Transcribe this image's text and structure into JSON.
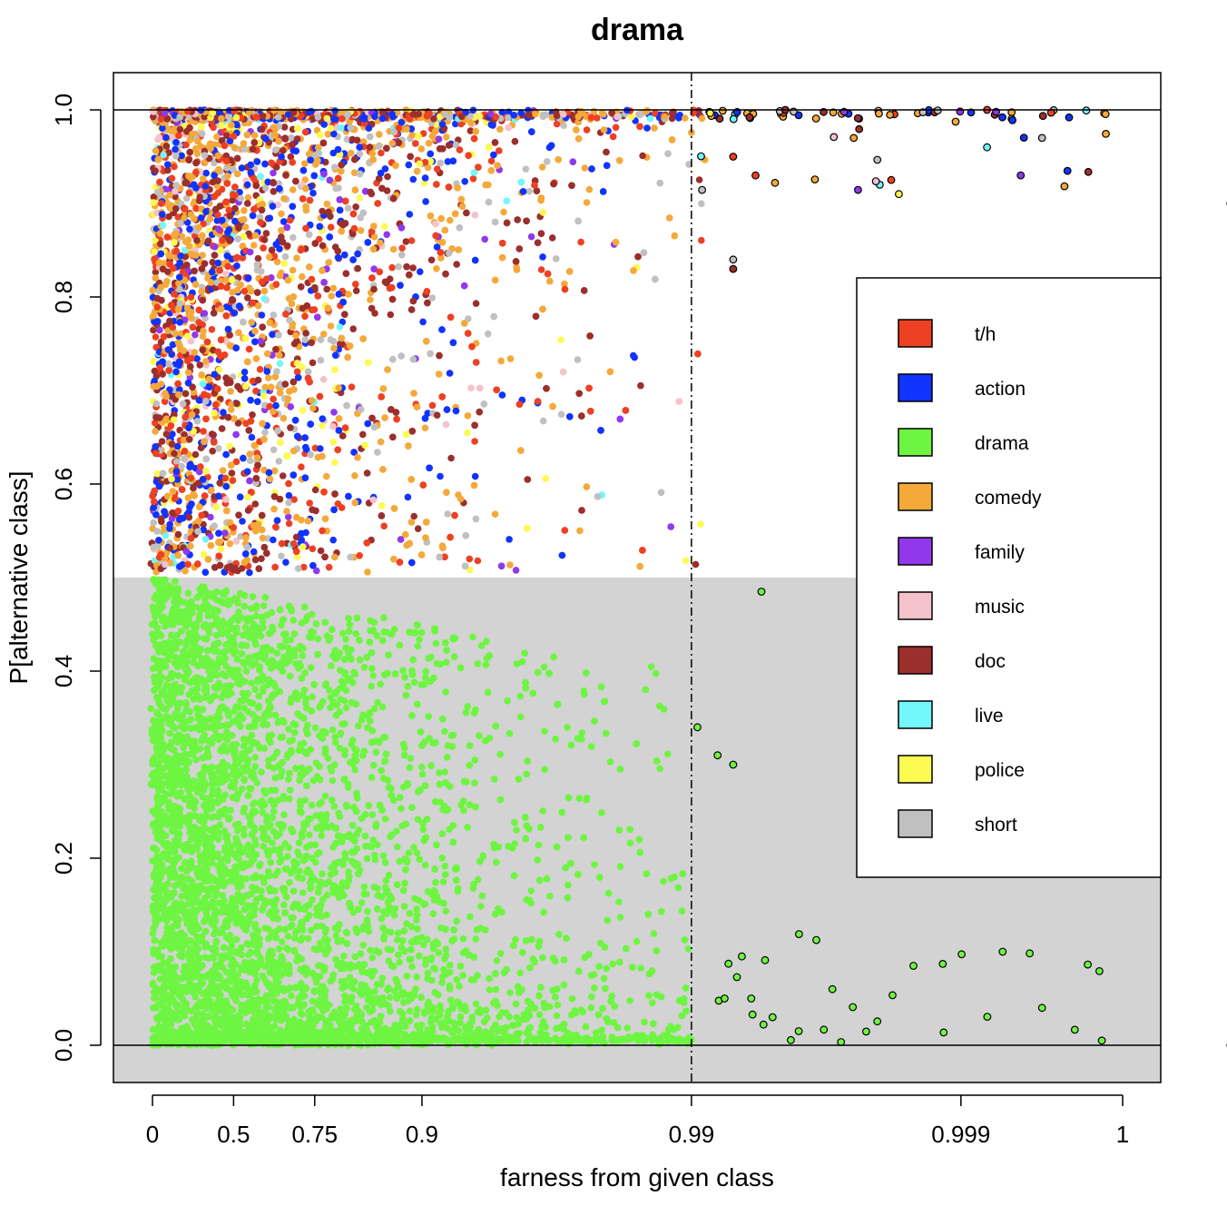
{
  "chart_data": {
    "type": "scatter",
    "title": "drama",
    "xlabel": "farness from given class",
    "ylabel": "P[alternative class]",
    "x_scale": "transformed: axis position = -log10(1 - farness)",
    "x_ticks": [
      {
        "value": 0,
        "label": "0"
      },
      {
        "value": 0.5,
        "label": "0.5"
      },
      {
        "value": 0.75,
        "label": "0.75"
      },
      {
        "value": 0.9,
        "label": "0.9"
      },
      {
        "value": 0.99,
        "label": "0.99"
      },
      {
        "value": 0.999,
        "label": "0.999"
      },
      {
        "value": 1,
        "label": "1"
      }
    ],
    "y_ticks": [
      {
        "value": 0.0,
        "label": "0.0"
      },
      {
        "value": 0.2,
        "label": "0.2"
      },
      {
        "value": 0.4,
        "label": "0.4"
      },
      {
        "value": 0.6,
        "label": "0.6"
      },
      {
        "value": 0.8,
        "label": "0.8"
      },
      {
        "value": 1.0,
        "label": "1.0"
      }
    ],
    "ylim": [
      -0.04,
      1.04
    ],
    "shaded_region": {
      "y_from": -0.04,
      "y_to": 0.5,
      "color": "#d3d3d3"
    },
    "horizontal_lines": [
      0.0,
      1.0
    ],
    "vertical_dashed_line": 0.99,
    "legend": {
      "placement": "right",
      "entries": [
        {
          "label": "t/h",
          "color": "#ee4023"
        },
        {
          "label": "action",
          "color": "#1133ff"
        },
        {
          "label": "drama",
          "color": "#6ef542"
        },
        {
          "label": "comedy",
          "color": "#f4a93a"
        },
        {
          "label": "family",
          "color": "#9238ec"
        },
        {
          "label": "music",
          "color": "#f5c2cb"
        },
        {
          "label": "doc",
          "color": "#9b2f2c"
        },
        {
          "label": "live",
          "color": "#73f6fc"
        },
        {
          "label": "police",
          "color": "#fdfa52"
        },
        {
          "label": "short",
          "color": "#c0c0c0"
        }
      ]
    },
    "series": [
      {
        "name": "drama",
        "color": "#6ef542",
        "region": "below 0.5",
        "dense": true,
        "points": [
          [
            0.02,
            0.45
          ],
          [
            0.1,
            0.3
          ],
          [
            0.3,
            0.2
          ],
          [
            0.5,
            0.4
          ],
          [
            0.7,
            0.25
          ],
          [
            0.85,
            0.35
          ],
          [
            0.9,
            0.45
          ],
          [
            0.95,
            0.2
          ],
          [
            0.97,
            0.1
          ],
          [
            0.98,
            0.05
          ],
          [
            0.99,
            0.02
          ]
        ],
        "outlined_points": [
          [
            0.9905,
            0.34
          ],
          [
            0.992,
            0.31
          ],
          [
            0.993,
            0.3
          ],
          [
            0.9935,
            0.095
          ],
          [
            0.994,
            0.05
          ],
          [
            0.9945,
            0.485
          ],
          [
            0.995,
            0.03
          ],
          [
            0.996,
            0.015
          ],
          [
            0.997,
            0.06
          ],
          [
            0.9985,
            0.085
          ],
          [
            0.9993,
            0.1
          ],
          [
            0.9995,
            0.04
          ],
          [
            0.9997,
            0.005
          ],
          [
            0.9999,
            0.0
          ]
        ]
      },
      {
        "name": "t/h",
        "color": "#ee4023",
        "region": "above 0.5",
        "points": [
          [
            0.02,
            0.85
          ],
          [
            0.2,
            0.6
          ],
          [
            0.4,
            0.9
          ],
          [
            0.6,
            0.7
          ],
          [
            0.8,
            0.55
          ],
          [
            0.95,
            0.72
          ],
          [
            0.993,
            0.95
          ],
          [
            0.9992,
            1.0
          ]
        ]
      },
      {
        "name": "action",
        "color": "#1133ff",
        "region": "above 0.5",
        "points": [
          [
            0.05,
            0.75
          ],
          [
            0.3,
            0.65
          ],
          [
            0.5,
            0.95
          ],
          [
            0.7,
            0.8
          ],
          [
            0.88,
            0.6
          ],
          [
            0.97,
            0.7
          ],
          [
            0.99,
            0.92
          ]
        ]
      },
      {
        "name": "comedy",
        "color": "#f4a93a",
        "region": "above 0.5",
        "points": [
          [
            0.01,
            0.6
          ],
          [
            0.25,
            0.85
          ],
          [
            0.45,
            0.55
          ],
          [
            0.65,
            0.9
          ],
          [
            0.85,
            0.68
          ],
          [
            0.96,
            0.8
          ],
          [
            0.9975,
            0.97
          ],
          [
            0.9999,
            0.9
          ]
        ]
      },
      {
        "name": "family",
        "color": "#9238ec",
        "region": "above 0.5",
        "points": [
          [
            0.3,
            0.72
          ],
          [
            0.7,
            0.6
          ],
          [
            0.9,
            0.75
          ],
          [
            0.9994,
            0.93
          ]
        ]
      },
      {
        "name": "music",
        "color": "#f5c2cb",
        "region": "above 0.5",
        "points": [
          [
            0.1,
            0.9
          ],
          [
            0.5,
            0.7
          ],
          [
            0.8,
            0.65
          ],
          [
            0.95,
            0.85
          ]
        ]
      },
      {
        "name": "doc",
        "color": "#9b2f2c",
        "region": "above 0.5",
        "points": [
          [
            0.02,
            0.7
          ],
          [
            0.2,
            0.95
          ],
          [
            0.45,
            0.75
          ],
          [
            0.65,
            0.58
          ],
          [
            0.85,
            0.82
          ],
          [
            0.993,
            0.83
          ]
        ]
      },
      {
        "name": "live",
        "color": "#73f6fc",
        "region": "above 0.5",
        "points": [
          [
            0.6,
            0.8
          ],
          [
            0.9,
            0.73
          ],
          [
            0.998,
            0.92
          ],
          [
            0.9992,
            0.96
          ]
        ]
      },
      {
        "name": "police",
        "color": "#fdfa52",
        "region": "above 0.5",
        "points": [
          [
            0.2,
            0.8
          ],
          [
            0.6,
            0.62
          ],
          [
            0.9,
            0.88
          ],
          [
            0.99,
            0.66
          ],
          [
            0.9983,
            0.91
          ]
        ]
      },
      {
        "name": "short",
        "color": "#c0c0c0",
        "region": "above 0.5",
        "points": [
          [
            0.3,
            0.6
          ],
          [
            0.7,
            0.88
          ],
          [
            0.9,
            0.55
          ],
          [
            0.98,
            0.77
          ],
          [
            0.993,
            0.84
          ],
          [
            0.9995,
            0.97
          ]
        ]
      }
    ]
  }
}
